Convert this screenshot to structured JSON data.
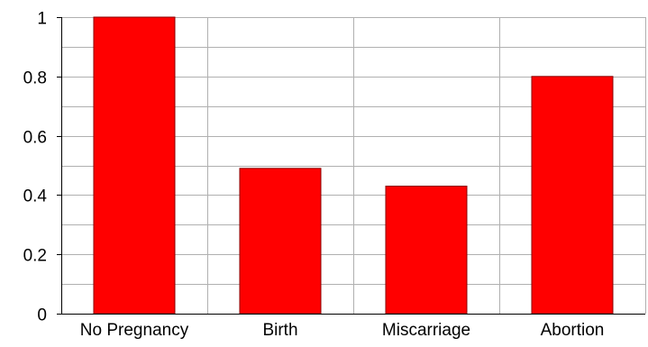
{
  "chart_data": {
    "type": "bar",
    "categories": [
      "No Pregnancy",
      "Birth",
      "Miscarriage",
      "Abortion"
    ],
    "values": [
      1.0,
      0.49,
      0.43,
      0.8
    ],
    "title": "",
    "xlabel": "",
    "ylabel": "",
    "ylim": [
      0,
      1
    ],
    "yticks": [
      "0",
      "0.2",
      "0.4",
      "0.6",
      "0.8",
      "1"
    ],
    "grid": true,
    "legend": "none",
    "bar_color": "#ff0000",
    "bar_edge_color": "#8b0000",
    "grid_color": "#b0b0b0"
  }
}
